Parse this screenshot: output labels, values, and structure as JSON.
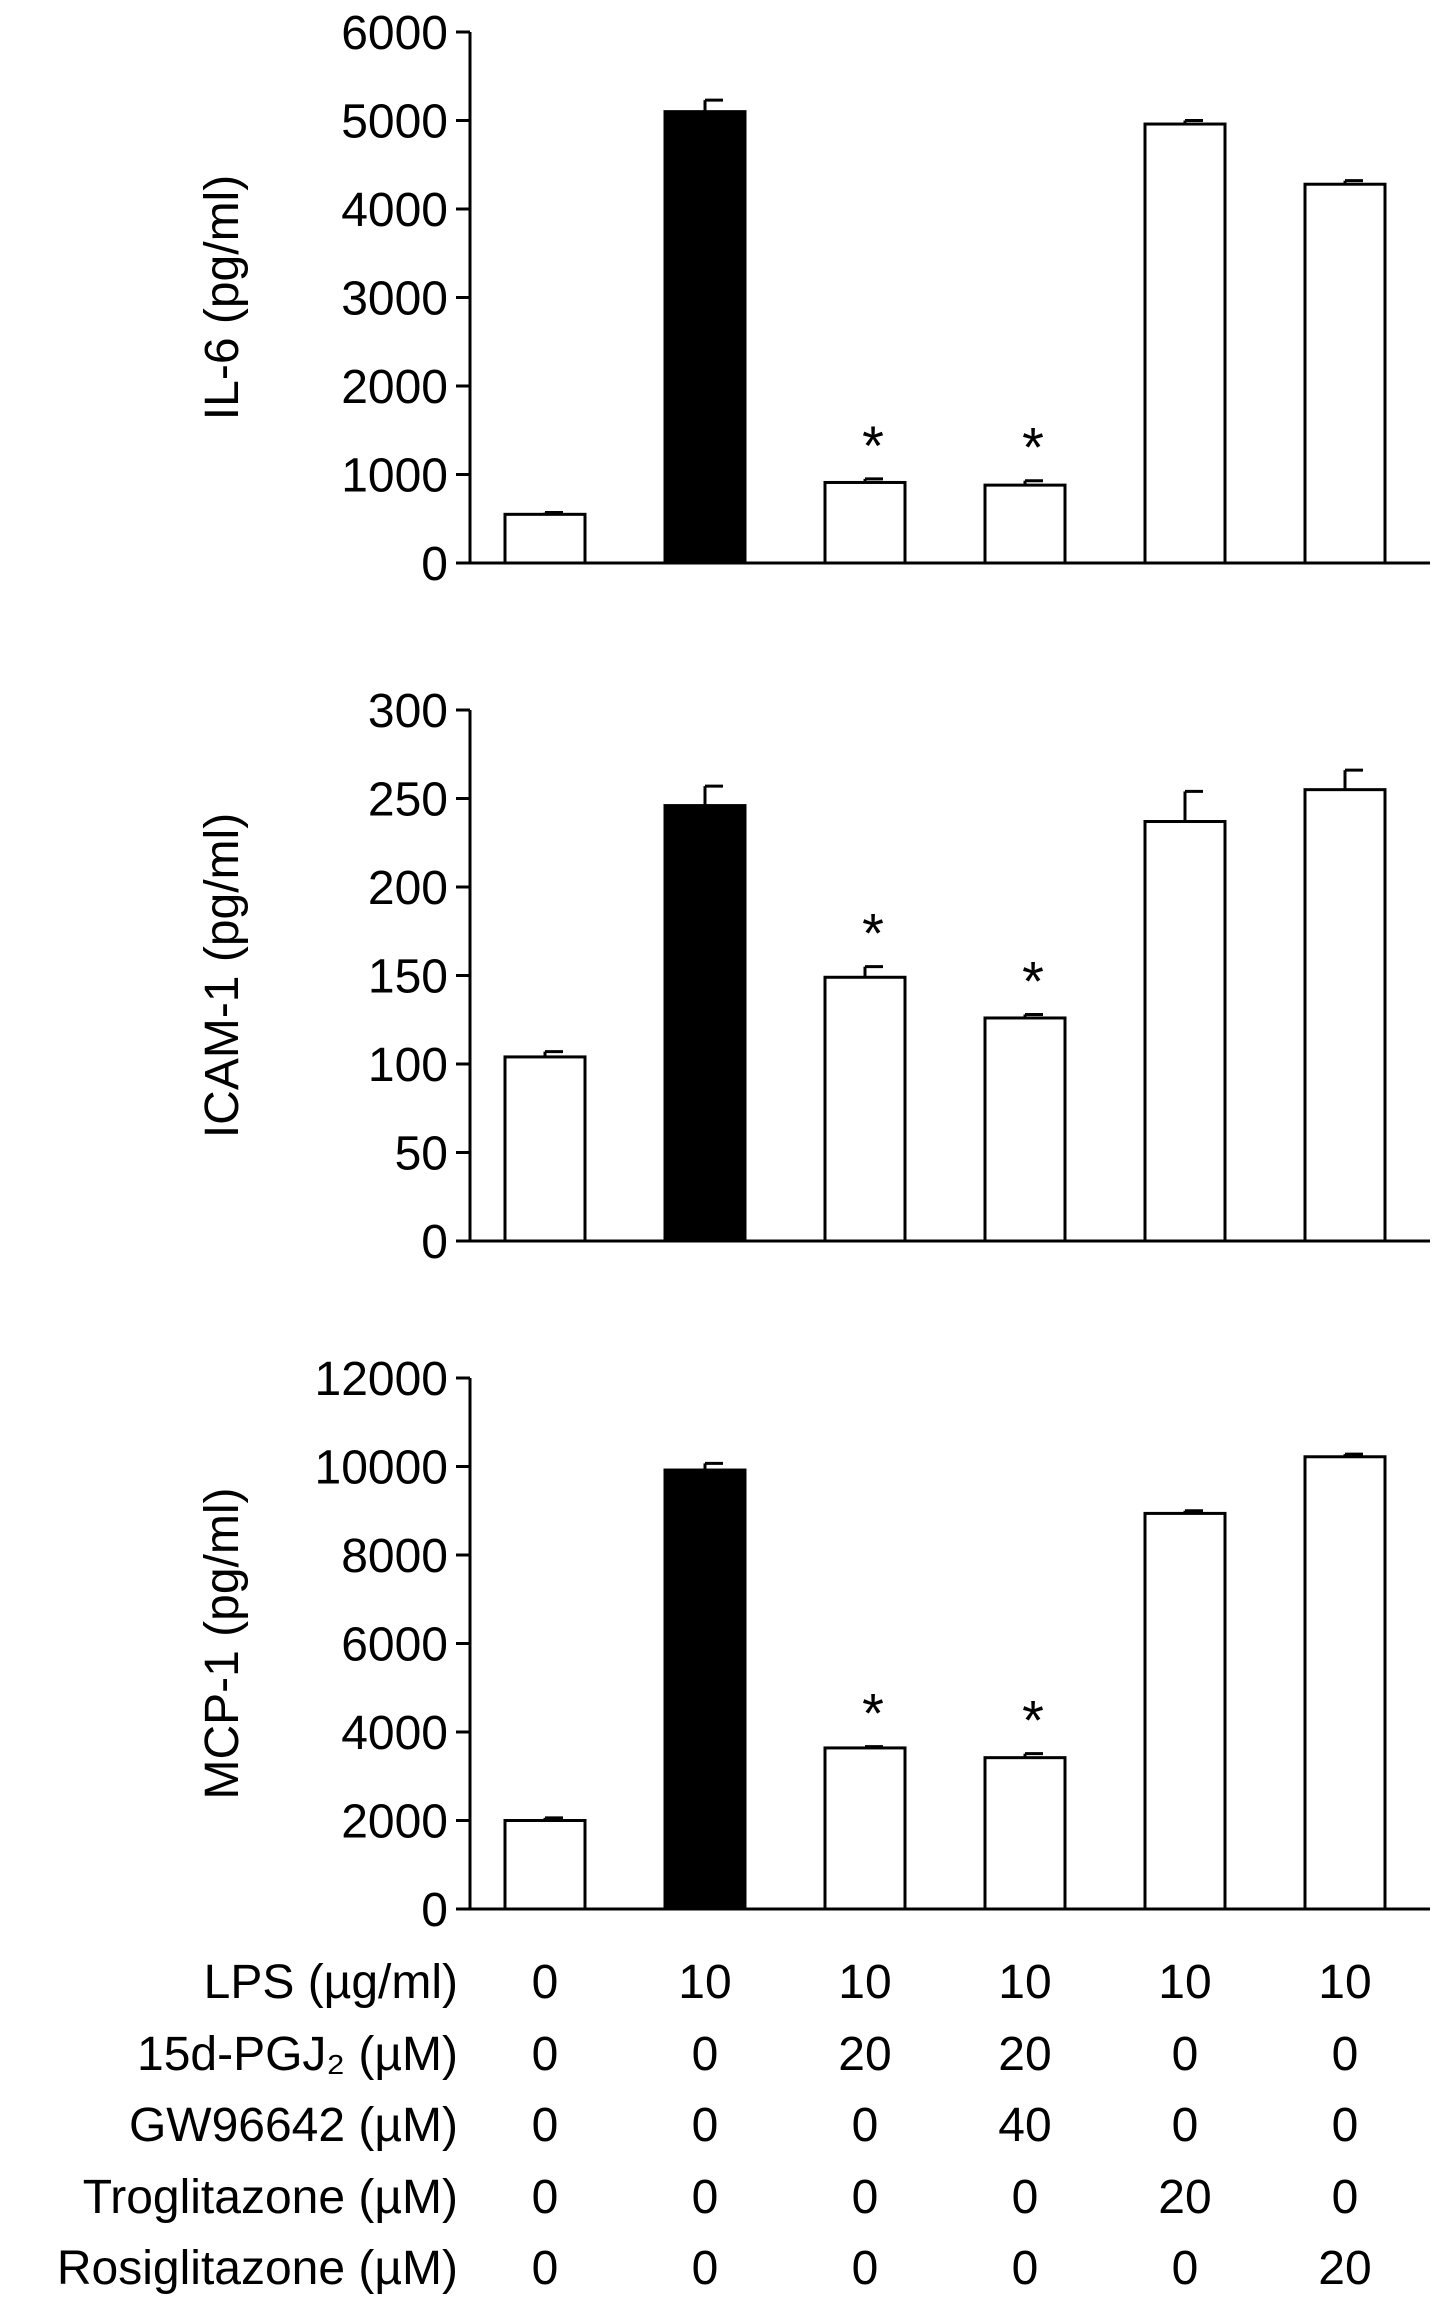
{
  "chart_data": [
    {
      "type": "bar",
      "ylabel": "IL-6 (pg/ml)",
      "ylim": [
        0,
        6000
      ],
      "yticks": [
        0,
        1000,
        2000,
        3000,
        4000,
        5000,
        6000
      ],
      "values": [
        550,
        5100,
        910,
        880,
        4960,
        4280
      ],
      "errors": [
        20,
        130,
        40,
        50,
        40,
        40
      ],
      "fills": [
        "white",
        "black",
        "white",
        "white",
        "white",
        "white"
      ],
      "significance": [
        "",
        "",
        "*",
        "*",
        "",
        ""
      ]
    },
    {
      "type": "bar",
      "ylabel": "ICAM-1 (pg/ml)",
      "ylim": [
        0,
        300
      ],
      "yticks": [
        0,
        50,
        100,
        150,
        200,
        250,
        300
      ],
      "values": [
        104,
        246,
        149,
        126,
        237,
        255
      ],
      "errors": [
        3,
        11,
        6,
        2,
        17,
        11
      ],
      "fills": [
        "white",
        "black",
        "white",
        "white",
        "white",
        "white"
      ],
      "significance": [
        "",
        "",
        "*",
        "*",
        "",
        ""
      ]
    },
    {
      "type": "bar",
      "ylabel": "MCP-1 (pg/ml)",
      "ylim": [
        0,
        12000
      ],
      "yticks": [
        0,
        2000,
        4000,
        6000,
        8000,
        10000,
        12000
      ],
      "values": [
        2000,
        9920,
        3640,
        3420,
        8940,
        10220
      ],
      "errors": [
        60,
        150,
        30,
        90,
        60,
        60
      ],
      "fills": [
        "white",
        "black",
        "white",
        "white",
        "white",
        "white"
      ],
      "significance": [
        "",
        "",
        "*",
        "*",
        "",
        ""
      ]
    }
  ],
  "treatment_table": {
    "rows": [
      {
        "label": "LPS (µg/ml)",
        "values": [
          "0",
          "10",
          "10",
          "10",
          "10",
          "10"
        ]
      },
      {
        "label": "15d-PGJ₂ (µM)",
        "values": [
          "0",
          "0",
          "20",
          "20",
          "0",
          "0"
        ]
      },
      {
        "label": "GW96642 (µM)",
        "values": [
          "0",
          "0",
          "0",
          "40",
          "0",
          "0"
        ]
      },
      {
        "label": "Troglitazone (µM)",
        "values": [
          "0",
          "0",
          "0",
          "0",
          "20",
          "0"
        ]
      },
      {
        "label": "Rosiglitazone (µM)",
        "values": [
          "0",
          "0",
          "0",
          "0",
          "0",
          "20"
        ]
      }
    ]
  }
}
